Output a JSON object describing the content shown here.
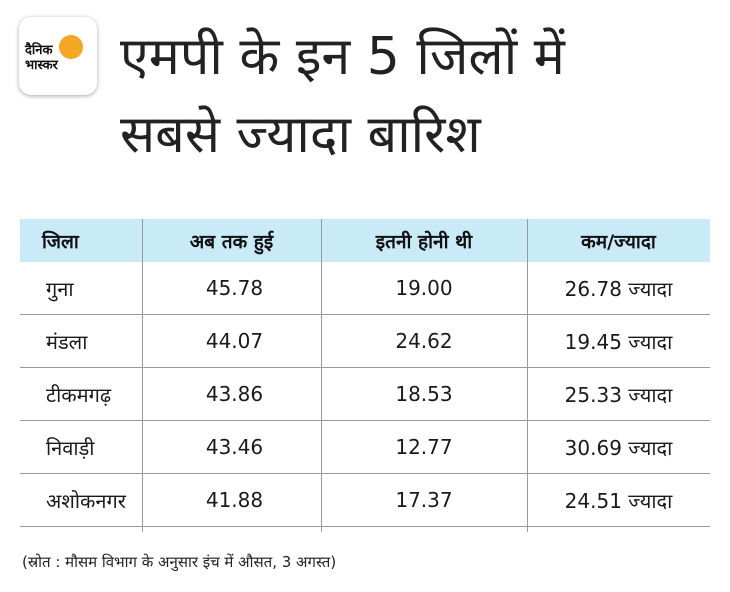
{
  "logo": {
    "line1": "दैनिक",
    "line2": "भास्कर",
    "accent_color": "#f5a623"
  },
  "title": {
    "line1": "एमपी के इन 5 जिलों में",
    "line2": "सबसे ज्यादा बारिश"
  },
  "table": {
    "header_bg": "#c9eaf7",
    "columns": [
      "जिला",
      "अब तक हुई",
      "इतनी होनी थी",
      "कम/ज्यादा"
    ],
    "rows": [
      [
        "गुना",
        "45.78",
        "19.00",
        "26.78 ज्यादा"
      ],
      [
        "मंडला",
        "44.07",
        "24.62",
        "19.45 ज्यादा"
      ],
      [
        "टीकमगढ़",
        "43.86",
        "18.53",
        "25.33 ज्यादा"
      ],
      [
        "निवाड़ी",
        "43.46",
        "12.77",
        "30.69 ज्यादा"
      ],
      [
        "अशोकनगर",
        "41.88",
        "17.37",
        "24.51 ज्यादा"
      ]
    ]
  },
  "source": "(स्रोत : मौसम विभाग के अनुसार इंच में औसत, 3 अगस्त)"
}
